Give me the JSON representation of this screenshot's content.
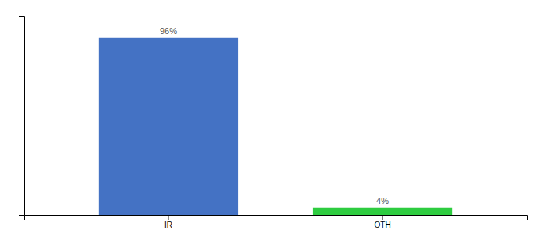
{
  "chart_data": {
    "type": "bar",
    "categories": [
      "IR",
      "OTH"
    ],
    "values": [
      96,
      4
    ],
    "value_labels": [
      "96%",
      "4%"
    ],
    "colors": [
      "#4472c4",
      "#2ecc40"
    ],
    "ylim": [
      0,
      108
    ],
    "yticks": [],
    "data_labels": true,
    "tick_labels": "x",
    "grid": false
  }
}
